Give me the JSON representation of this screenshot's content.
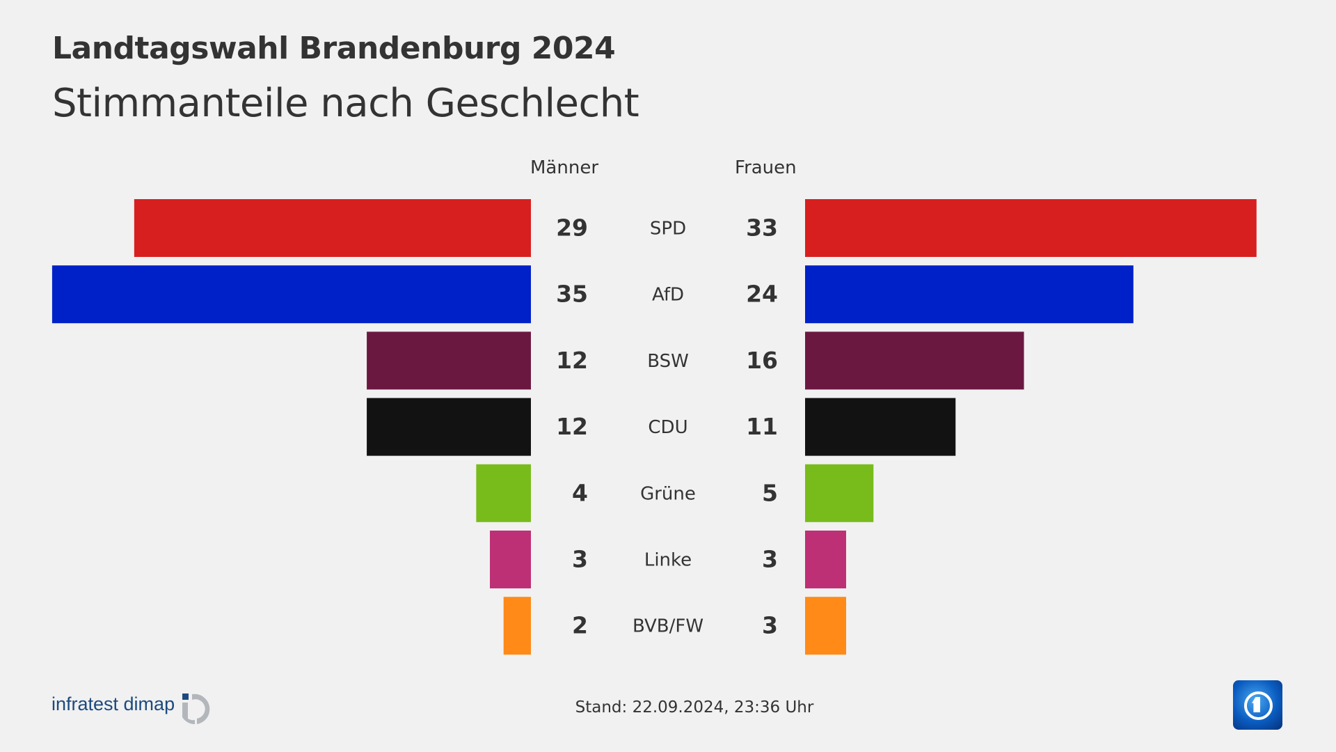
{
  "title": "Landtagswahl Brandenburg 2024",
  "subtitle": "Stimmanteile nach Geschlecht",
  "footer": {
    "stand": "Stand:  22.09.2024, 23:36 Uhr",
    "source_logo": "infratest dimap",
    "broadcaster_logo": "ARD Das Erste"
  },
  "chart_data": {
    "type": "bar",
    "orientation": "horizontal-butterfly",
    "categories": [
      "SPD",
      "AfD",
      "BSW",
      "CDU",
      "Grüne",
      "Linke",
      "BVB/FW"
    ],
    "series": [
      {
        "name": "Männer",
        "values": [
          29,
          35,
          12,
          12,
          4,
          3,
          2
        ]
      },
      {
        "name": "Frauen",
        "values": [
          33,
          24,
          16,
          11,
          5,
          3,
          3
        ]
      }
    ],
    "colors": [
      "#d71f1f",
      "#0021c8",
      "#6b1841",
      "#121212",
      "#78bc1b",
      "#bd3075",
      "#ff8a17"
    ],
    "grid": false,
    "legend": "none"
  }
}
